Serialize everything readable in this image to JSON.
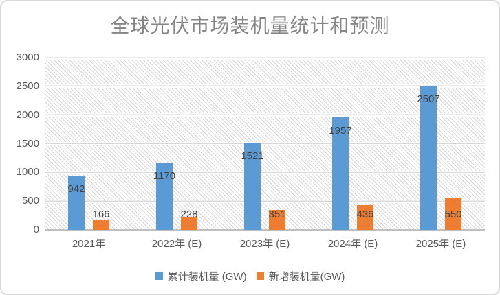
{
  "chart_data": {
    "type": "bar",
    "title": "全球光伏市场装机量统计和预测",
    "categories": [
      "2021年",
      "2022年 (E)",
      "2023年 (E)",
      "2024年 (E)",
      "2025年 (E)"
    ],
    "series": [
      {
        "name": "累计装机量 (GW)",
        "color": "#5B9BD5",
        "values": [
          942,
          1170,
          1521,
          1957,
          2507
        ]
      },
      {
        "name": "新增装机量(GW)",
        "color": "#ED7D31",
        "values": [
          166,
          228,
          351,
          436,
          550
        ]
      }
    ],
    "xlabel": "",
    "ylabel": "",
    "ylim": [
      0,
      3000
    ],
    "yticks": [
      0,
      500,
      1000,
      1500,
      2000,
      2500,
      3000
    ],
    "grid": true,
    "plot_background": "diagonal-hatch",
    "data_labels": true,
    "legend_position": "bottom",
    "colors": {
      "title_text": "#858585",
      "axis_text": "#595959",
      "data_label_text": "#404040",
      "gridline": "#d9d9d9",
      "axis_line": "#bfbfbf",
      "frame_border": "#d9d9d9"
    }
  }
}
